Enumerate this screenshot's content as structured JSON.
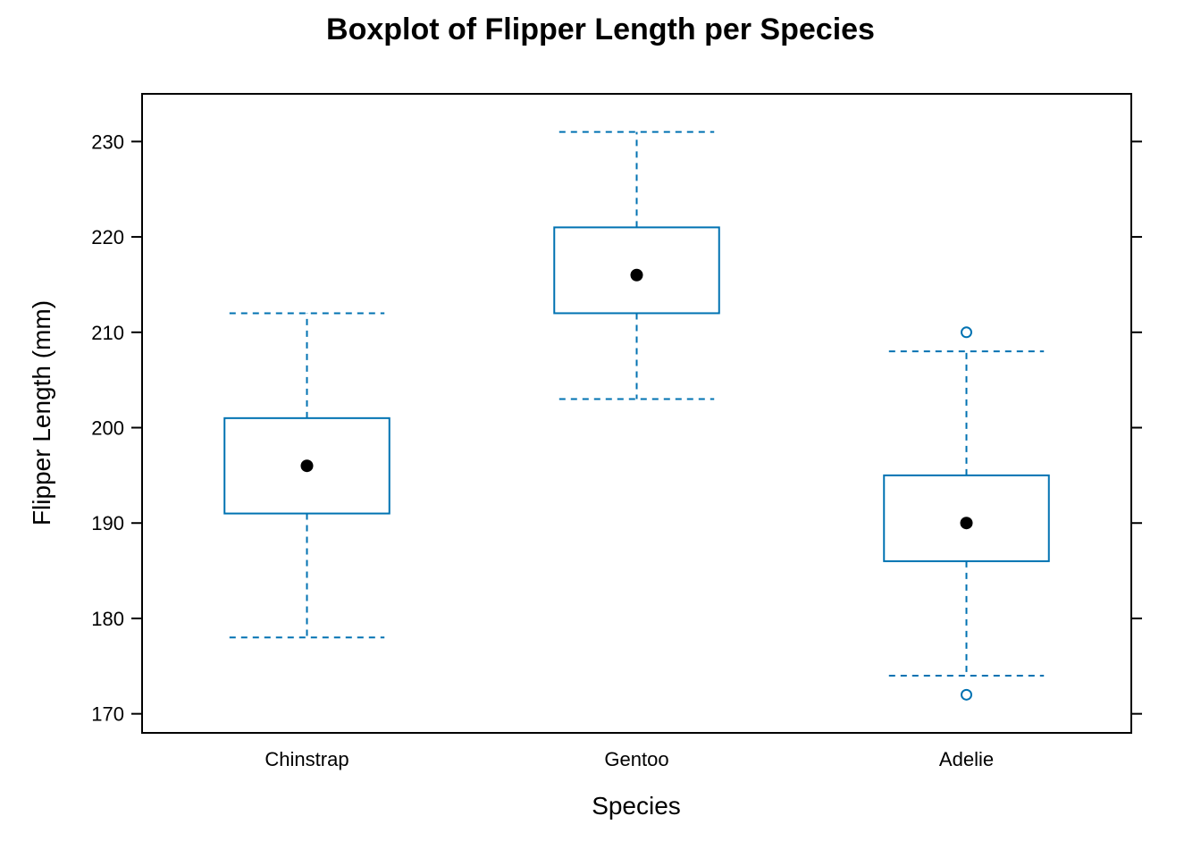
{
  "chart_data": {
    "type": "box",
    "title": "Boxplot of Flipper Length per Species",
    "xlabel": "Species",
    "ylabel": "Flipper Length (mm)",
    "ylim": [
      168,
      235
    ],
    "yticks": [
      170,
      180,
      190,
      200,
      210,
      220,
      230
    ],
    "grid": false,
    "colors": {
      "box": "#0072b2",
      "median": "#000000",
      "axis": "#000000"
    },
    "categories": [
      "Chinstrap",
      "Gentoo",
      "Adelie"
    ],
    "boxes": [
      {
        "category": "Chinstrap",
        "whisker_low": 178,
        "q1": 191,
        "median": 196,
        "q3": 201,
        "whisker_high": 212,
        "outliers": []
      },
      {
        "category": "Gentoo",
        "whisker_low": 203,
        "q1": 212,
        "median": 216,
        "q3": 221,
        "whisker_high": 231,
        "outliers": []
      },
      {
        "category": "Adelie",
        "whisker_low": 174,
        "q1": 186,
        "median": 190,
        "q3": 195,
        "whisker_high": 208,
        "outliers": [
          172,
          210
        ]
      }
    ]
  }
}
